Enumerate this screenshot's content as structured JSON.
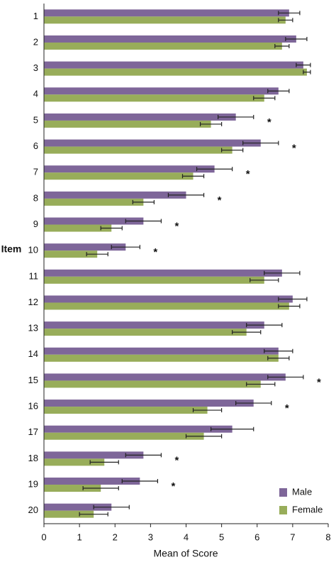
{
  "chart_data": {
    "type": "hbar",
    "y_label": "Item",
    "x_label": "Mean of Score",
    "categories": [
      "1",
      "2",
      "3",
      "4",
      "5",
      "6",
      "7",
      "8",
      "9",
      "10",
      "11",
      "12",
      "13",
      "14",
      "15",
      "16",
      "17",
      "18",
      "19",
      "20"
    ],
    "series": [
      {
        "name": "Male",
        "color": "#7e6699",
        "values": [
          6.9,
          7.1,
          7.3,
          6.6,
          5.4,
          6.1,
          4.8,
          4.0,
          2.8,
          2.3,
          6.7,
          7.0,
          6.2,
          6.6,
          6.8,
          5.9,
          5.3,
          2.8,
          2.7,
          1.9
        ],
        "errors": [
          0.3,
          0.3,
          0.2,
          0.3,
          0.5,
          0.5,
          0.5,
          0.5,
          0.5,
          0.4,
          0.5,
          0.4,
          0.5,
          0.4,
          0.5,
          0.5,
          0.6,
          0.5,
          0.5,
          0.5
        ]
      },
      {
        "name": "Female",
        "color": "#98ad5a",
        "values": [
          6.8,
          6.7,
          7.4,
          6.2,
          4.7,
          5.3,
          4.2,
          2.8,
          1.9,
          1.5,
          6.2,
          6.9,
          5.7,
          6.6,
          6.1,
          4.6,
          4.5,
          1.7,
          1.6,
          1.4
        ],
        "errors": [
          0.2,
          0.2,
          0.1,
          0.3,
          0.3,
          0.3,
          0.3,
          0.3,
          0.3,
          0.3,
          0.4,
          0.3,
          0.4,
          0.3,
          0.4,
          0.4,
          0.5,
          0.4,
          0.5,
          0.4
        ]
      }
    ],
    "annotations": [
      {
        "category": "5",
        "text": "*"
      },
      {
        "category": "6",
        "text": "*"
      },
      {
        "category": "7",
        "text": "*"
      },
      {
        "category": "8",
        "text": "*"
      },
      {
        "category": "9",
        "text": "*"
      },
      {
        "category": "10",
        "text": "*"
      },
      {
        "category": "15",
        "text": "*"
      },
      {
        "category": "16",
        "text": "*"
      },
      {
        "category": "18",
        "text": "*"
      },
      {
        "category": "19",
        "text": "*"
      }
    ],
    "xlim": [
      0,
      8
    ],
    "xticks": [
      0,
      1,
      2,
      3,
      4,
      5,
      6,
      7,
      8
    ],
    "legend": "bottom-right"
  }
}
